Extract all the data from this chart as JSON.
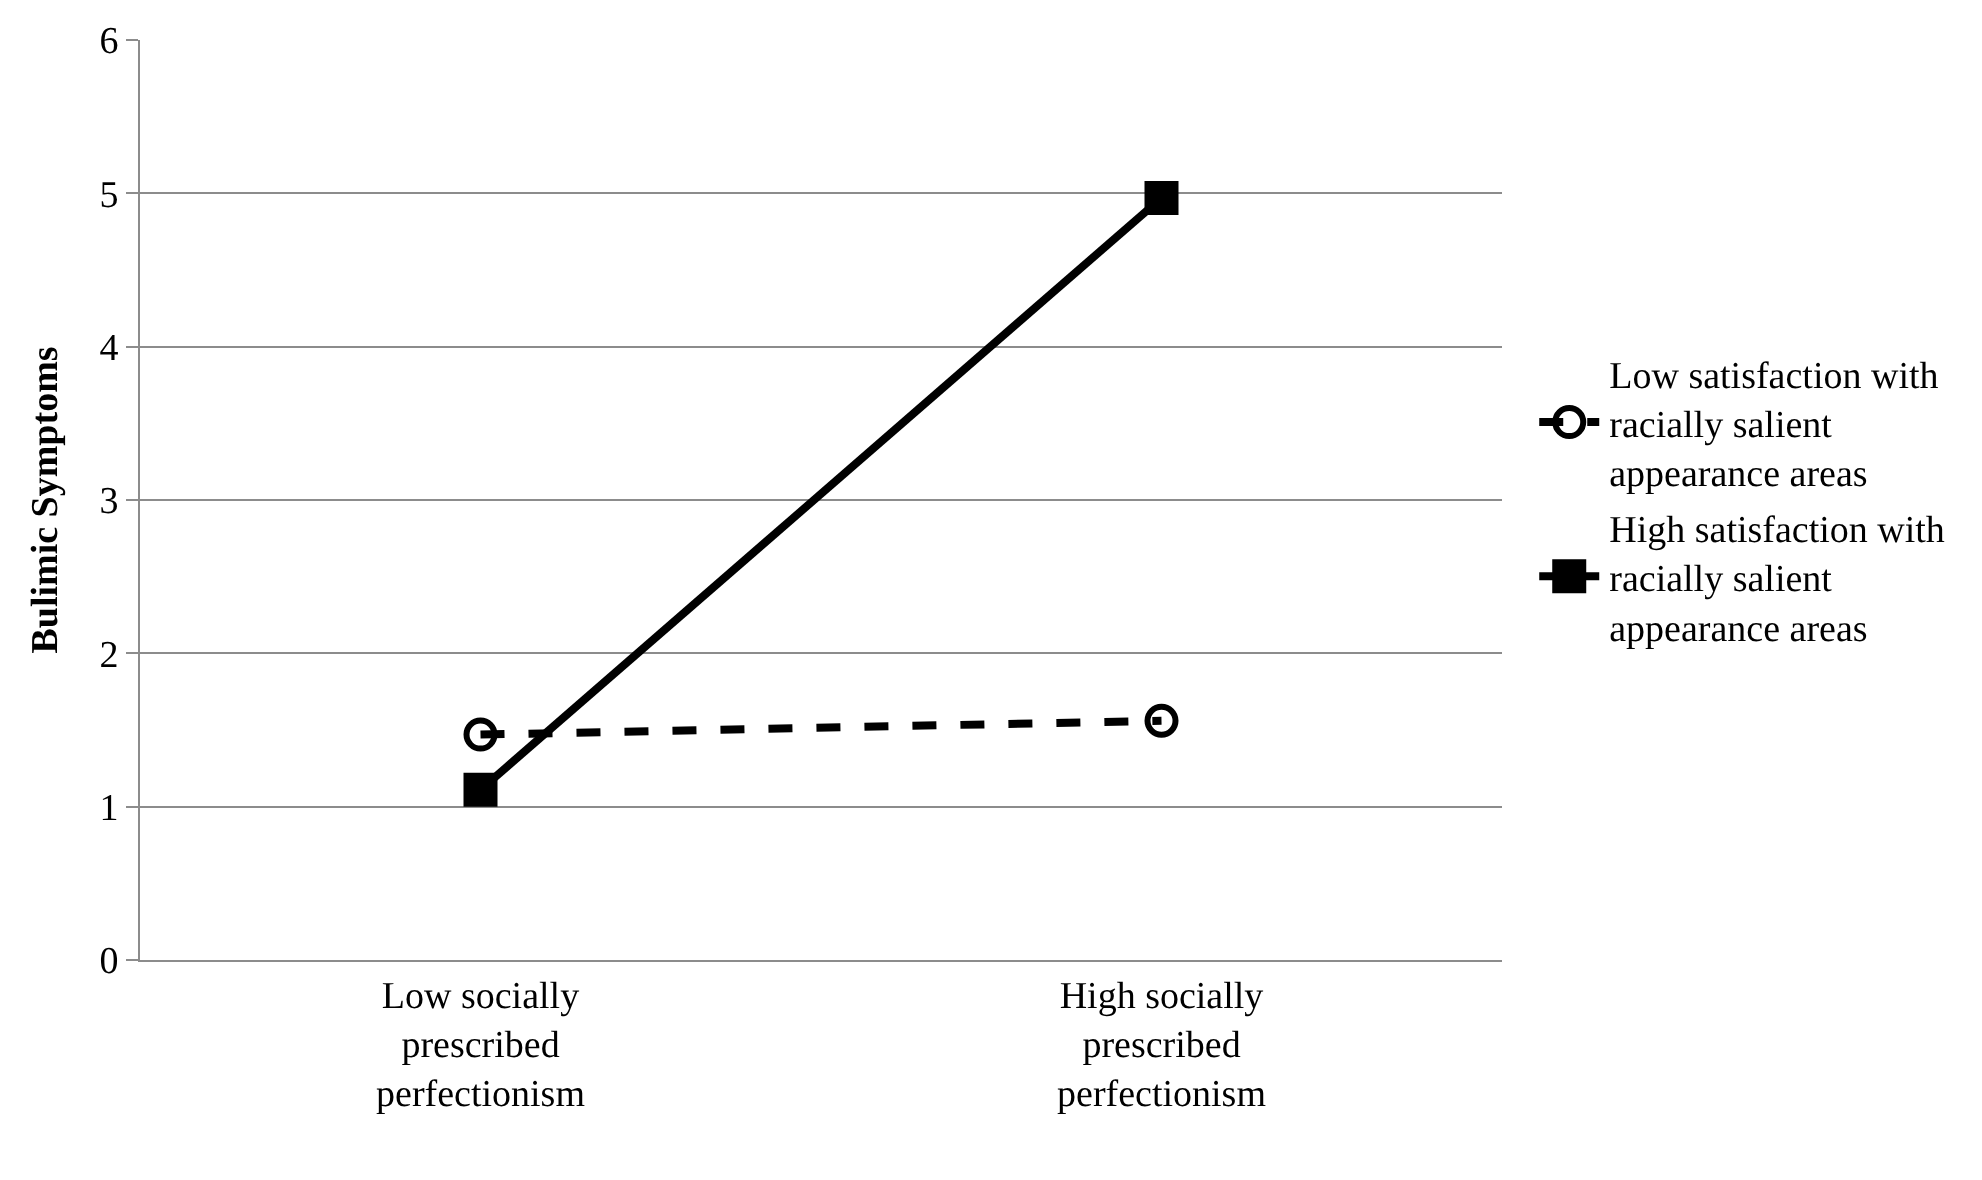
{
  "chart_data": {
    "type": "line",
    "ylabel": "Bulimic Symptoms",
    "categories": [
      "Low socially prescribed perfectionism",
      "High socially prescribed perfectionism"
    ],
    "series": [
      {
        "name": "Low satisfaction with racially salient appearance areas",
        "color": "#000000",
        "values": [
          1.47,
          1.56
        ],
        "marker": "circle",
        "line_style": "dashed"
      },
      {
        "name": "High satisfaction with racially salient appearance areas",
        "color": "#000000",
        "values": [
          1.11,
          4.97
        ],
        "marker": "square",
        "line_style": "solid"
      }
    ],
    "ylim": [
      0,
      6
    ],
    "yticks": [
      0,
      1,
      2,
      3,
      4,
      5,
      6
    ],
    "grid": "y",
    "legend": "right"
  }
}
